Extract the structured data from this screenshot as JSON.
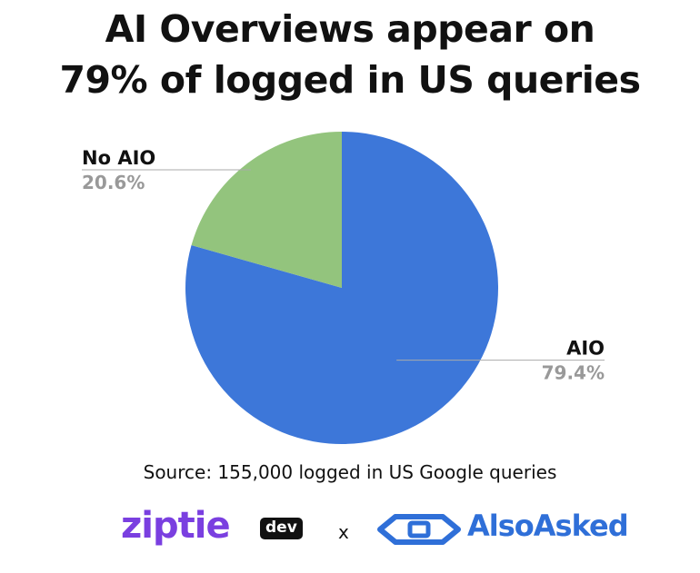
{
  "title_line1": "AI Overviews appear on",
  "title_line2": "79% of logged in US queries",
  "source": "Source: 155,000 logged in US Google queries",
  "logos": {
    "ziptie": "ziptie",
    "dev": "dev",
    "times": "x",
    "alsoasked": "AlsoAsked"
  },
  "chart_data": {
    "type": "pie",
    "title": "AI Overviews appear on 79% of logged in US queries",
    "slices": [
      {
        "label": "AIO",
        "value": 79.4,
        "display": "79.4%",
        "color": "#3d77d9"
      },
      {
        "label": "No AIO",
        "value": 20.6,
        "display": "20.6%",
        "color": "#93c47d"
      }
    ],
    "start_angle_deg": 0,
    "direction": "clockwise",
    "label_color": "#111111",
    "value_color": "#999999",
    "leader_color": "#aaaaaa"
  }
}
